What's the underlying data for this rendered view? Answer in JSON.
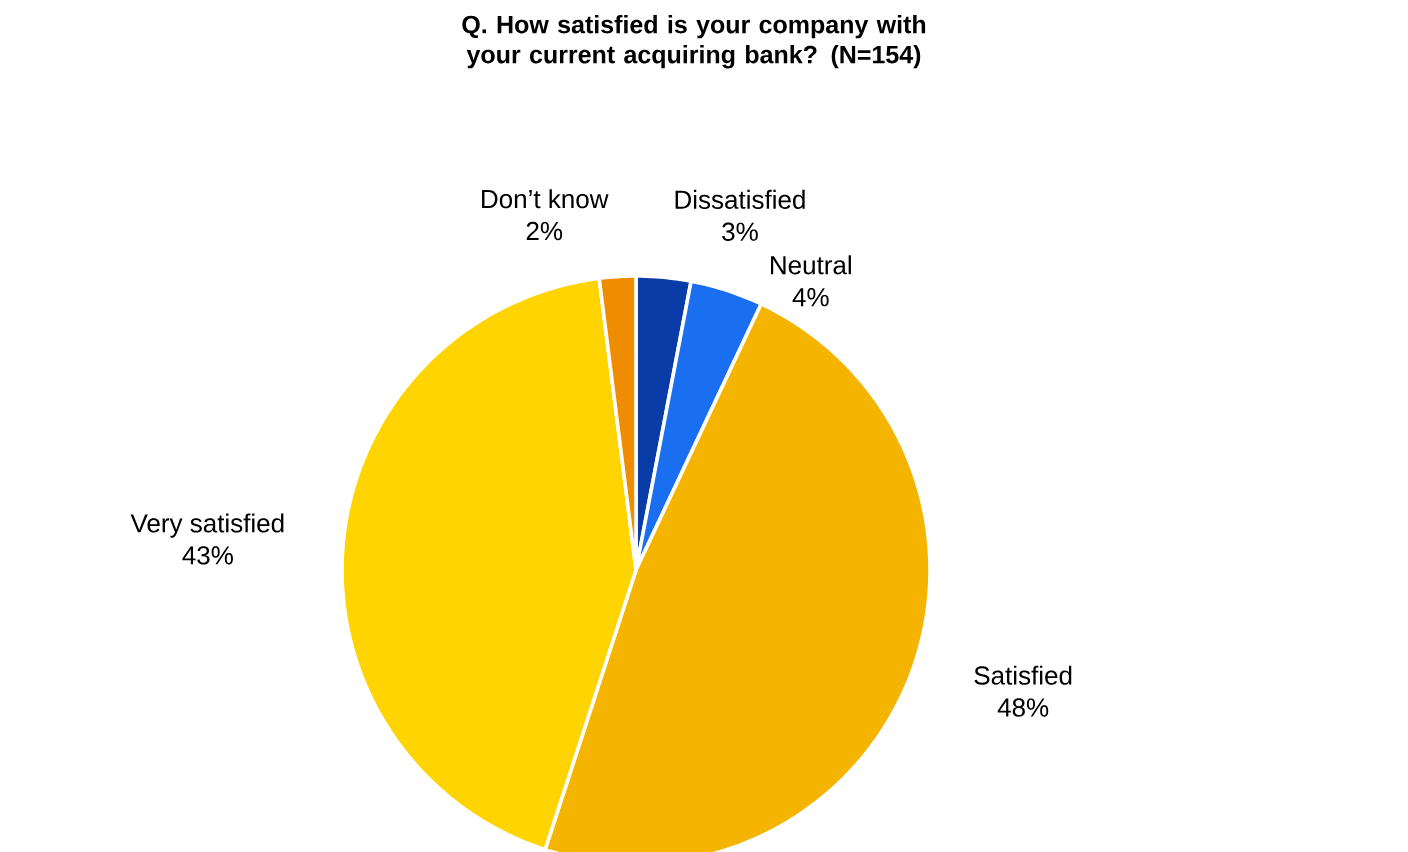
{
  "chart_data": {
    "type": "pie",
    "title": "Q. How satisfied is your company with your current acquiring bank? (N=154)",
    "categories": [
      "Dissatisfied",
      "Neutral",
      "Satisfied",
      "Very satisfied",
      "Don’t know"
    ],
    "values": [
      3,
      4,
      48,
      43,
      2
    ],
    "value_labels": [
      "3%",
      "4%",
      "48%",
      "43%",
      "2%"
    ],
    "colors": [
      "#0a3ca8",
      "#1a6ef0",
      "#f5b400",
      "#ffd400",
      "#f08c00"
    ]
  }
}
